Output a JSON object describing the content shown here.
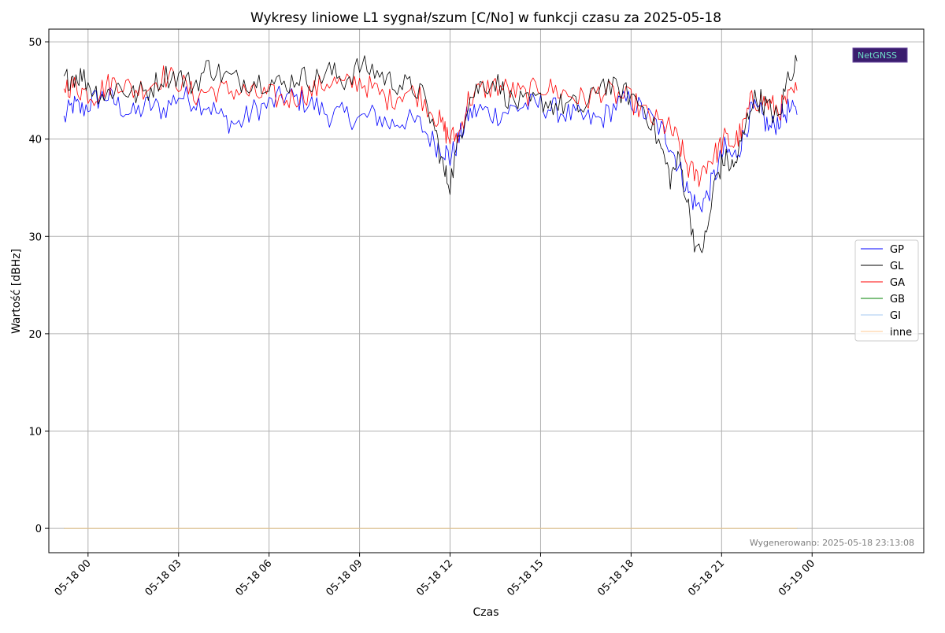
{
  "chart_data": {
    "type": "line",
    "title": "Wykresy liniowe L1 sygnał/szum [C/No] w funkcji czasu za 2025-05-18",
    "xlabel": "Czas",
    "ylabel": "Wartość [dBHz]",
    "ylim": [
      -2.5,
      51.3
    ],
    "yticks": [
      0,
      10,
      20,
      30,
      40,
      50
    ],
    "x_range_hours": [
      -1.3,
      27.7
    ],
    "xticks": [
      {
        "h": 0,
        "label": "05-18 00"
      },
      {
        "h": 3,
        "label": "05-18 03"
      },
      {
        "h": 6,
        "label": "05-18 06"
      },
      {
        "h": 9,
        "label": "05-18 09"
      },
      {
        "h": 12,
        "label": "05-18 12"
      },
      {
        "h": 15,
        "label": "05-18 15"
      },
      {
        "h": 18,
        "label": "05-18 18"
      },
      {
        "h": 21,
        "label": "05-18 21"
      },
      {
        "h": 24,
        "label": "05-19 00"
      }
    ],
    "grid": true,
    "legend_position": "center-right",
    "footnote": "Wygenerowano: 2025-05-18 23:13:08",
    "logo_text": "NetGNSS",
    "series": [
      {
        "name": "GP",
        "color": "#0000ff",
        "x_hours": [
          -0.8,
          -0.5,
          -0.2,
          0.2,
          0.6,
          1.0,
          1.5,
          2.0,
          2.5,
          3.0,
          3.5,
          4.0,
          4.5,
          5.0,
          5.5,
          6.0,
          6.5,
          7.0,
          7.5,
          8.0,
          8.5,
          9.0,
          9.5,
          10.0,
          10.5,
          11.0,
          11.5,
          11.8,
          12.0,
          12.3,
          12.6,
          13.0,
          13.5,
          14.0,
          14.5,
          15.0,
          15.5,
          16.0,
          16.5,
          17.0,
          17.5,
          18.0,
          18.5,
          19.0,
          19.3,
          19.6,
          19.9,
          20.2,
          20.5,
          20.8,
          21.1,
          21.4,
          21.7,
          22.0,
          22.3,
          22.6,
          22.9,
          23.2,
          23.5
        ],
        "y": [
          42,
          43.5,
          43,
          44,
          44.5,
          43.5,
          42.5,
          43.5,
          43,
          44.5,
          44,
          43.5,
          42,
          41.5,
          43,
          43.5,
          44.5,
          44,
          43.5,
          42.5,
          42.5,
          42,
          42.5,
          41.5,
          42,
          41.5,
          39.5,
          39,
          38,
          40,
          42.5,
          43,
          42.5,
          43,
          43.5,
          43.5,
          43,
          42.5,
          42,
          42,
          43.5,
          44,
          42.5,
          41,
          39.5,
          37,
          34.5,
          33,
          34,
          36.5,
          39,
          38,
          40,
          43,
          42.5,
          41,
          42,
          43,
          42.5
        ]
      },
      {
        "name": "GL",
        "color": "#000000",
        "x_hours": [
          -0.8,
          -0.5,
          -0.2,
          0.2,
          0.6,
          1.0,
          1.5,
          2.0,
          2.5,
          3.0,
          3.5,
          4.0,
          4.5,
          5.0,
          5.5,
          6.0,
          6.5,
          7.0,
          7.5,
          8.0,
          8.5,
          9.0,
          9.5,
          10.0,
          10.5,
          11.0,
          11.5,
          11.8,
          12.0,
          12.3,
          12.6,
          13.0,
          13.5,
          14.0,
          14.5,
          15.0,
          15.5,
          16.0,
          16.5,
          17.0,
          17.5,
          18.0,
          18.5,
          19.0,
          19.3,
          19.6,
          19.9,
          20.2,
          20.5,
          20.8,
          21.1,
          21.4,
          21.7,
          22.0,
          22.3,
          22.6,
          22.9,
          23.2,
          23.5
        ],
        "y": [
          46,
          46.5,
          46.5,
          45,
          44.5,
          45.5,
          44.5,
          45,
          46.5,
          46.5,
          45.5,
          47.5,
          46.5,
          46,
          46,
          46,
          45.5,
          46.5,
          46,
          47,
          46,
          47.5,
          47,
          46,
          45.5,
          45,
          41,
          36.5,
          35.5,
          40,
          44,
          45.5,
          46,
          44,
          43.5,
          44,
          43.5,
          43.5,
          43,
          46,
          45,
          44.5,
          43,
          39,
          36,
          38,
          33,
          28,
          30,
          36,
          38,
          37,
          40,
          44,
          44,
          43,
          42,
          46.5,
          48
        ]
      },
      {
        "name": "GA",
        "color": "#ff0000",
        "x_hours": [
          -0.8,
          -0.5,
          -0.2,
          0.2,
          0.6,
          1.0,
          1.5,
          2.0,
          2.5,
          3.0,
          3.5,
          4.0,
          4.5,
          5.0,
          5.5,
          6.0,
          6.5,
          7.0,
          7.5,
          8.0,
          8.5,
          9.0,
          9.5,
          10.0,
          10.5,
          11.0,
          11.5,
          11.8,
          12.0,
          12.3,
          12.6,
          13.0,
          13.5,
          14.0,
          14.5,
          15.0,
          15.5,
          16.0,
          16.5,
          17.0,
          17.5,
          18.0,
          18.5,
          19.0,
          19.3,
          19.6,
          19.9,
          20.2,
          20.5,
          20.8,
          21.1,
          21.4,
          21.7,
          22.0,
          22.3,
          22.6,
          22.9,
          23.2,
          23.5
        ],
        "y": [
          45.5,
          45.5,
          45,
          44.5,
          45.5,
          46,
          45,
          45.5,
          46.5,
          46,
          44.5,
          45,
          45,
          45,
          44.5,
          44.5,
          44,
          44.5,
          45,
          46,
          45.5,
          46,
          45,
          44,
          45,
          44.5,
          42.5,
          41,
          40,
          40.5,
          44,
          45,
          45.5,
          45,
          44.5,
          45.5,
          45,
          44.5,
          44,
          45,
          44.5,
          44,
          42.5,
          41.5,
          41,
          39.5,
          37,
          36,
          37.5,
          38.5,
          40,
          39.5,
          41,
          44,
          44,
          43.5,
          43,
          44,
          45
        ]
      },
      {
        "name": "GB",
        "color": "#008000",
        "x_hours": [
          -0.8,
          23.5
        ],
        "y": [
          0,
          0
        ]
      },
      {
        "name": "GI",
        "color": "#a6c8f0",
        "x_hours": [
          -0.8,
          23.5
        ],
        "y": [
          0,
          0
        ]
      },
      {
        "name": "inne",
        "color": "#ffc890",
        "x_hours": [
          -0.8,
          23.5
        ],
        "y": [
          0,
          0
        ]
      }
    ]
  }
}
